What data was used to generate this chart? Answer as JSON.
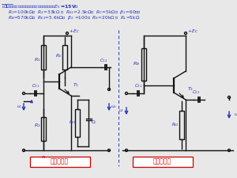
{
  "bg_color": "#f0f0f0",
  "title_line1": "例1：放大电路由下面两个放大电路组成。已知$E_C$=15V，",
  "title_line2": "$R_1$=100k$\\Omega$，  $R_2$=33k$\\Omega$ ，  $R_{E1}$=2.5k$\\Omega$，  $R_C$=5k$\\Omega$，  $\\beta_1$=60，；",
  "title_line3": "$R_B$=570k$\\Omega$，  $R_{E2}$=5.6k$\\Omega$，  $\\beta_2$ =100，  $R_S$=20k$\\Omega$ ，  $R_L$=5k$\\Omega$",
  "label_circuit1": "放大电路一",
  "label_circuit2": "放大电路二",
  "blue": "#2233bb",
  "red": "#cc0000",
  "black": "#111111"
}
